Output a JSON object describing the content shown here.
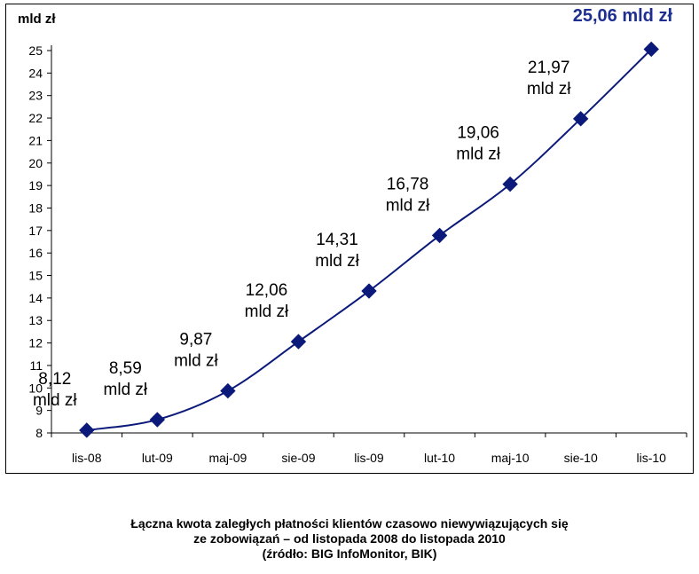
{
  "chart_data": {
    "type": "line",
    "ylabel": "mld zł",
    "categories": [
      "lis-08",
      "lut-09",
      "maj-09",
      "sie-09",
      "lis-09",
      "lut-10",
      "maj-10",
      "sie-10",
      "lis-10"
    ],
    "series": [
      {
        "values": [
          8.12,
          8.59,
          9.87,
          12.06,
          14.31,
          16.78,
          19.06,
          21.97,
          25.06
        ]
      }
    ],
    "data_labels": [
      {
        "value": "8,12",
        "unit": "mld zł"
      },
      {
        "value": "8,59",
        "unit": "mld zł"
      },
      {
        "value": "9,87",
        "unit": "mld zł"
      },
      {
        "value": "12,06",
        "unit": "mld zł"
      },
      {
        "value": "14,31",
        "unit": "mld zł"
      },
      {
        "value": "16,78",
        "unit": "mld zł"
      },
      {
        "value": "19,06",
        "unit": "mld zł"
      },
      {
        "value": "21,97",
        "unit": "mld zł"
      }
    ],
    "final_label": "25,06 mld zł",
    "ylim": [
      8,
      25
    ],
    "yticks": [
      8,
      9,
      10,
      11,
      12,
      13,
      14,
      15,
      16,
      17,
      18,
      19,
      20,
      21,
      22,
      23,
      24,
      25
    ],
    "colors": {
      "series": "#0b1a7a",
      "final_label": "#1f2f8f"
    }
  },
  "caption": {
    "line1": "Łączna kwota zaległych płatności klientów czasowo niewywiązujących się",
    "line2": "ze zobowiązań – od listopada 2008 do listopada 2010",
    "line3": "(źródło: BIG InfoMonitor, BIK)"
  }
}
